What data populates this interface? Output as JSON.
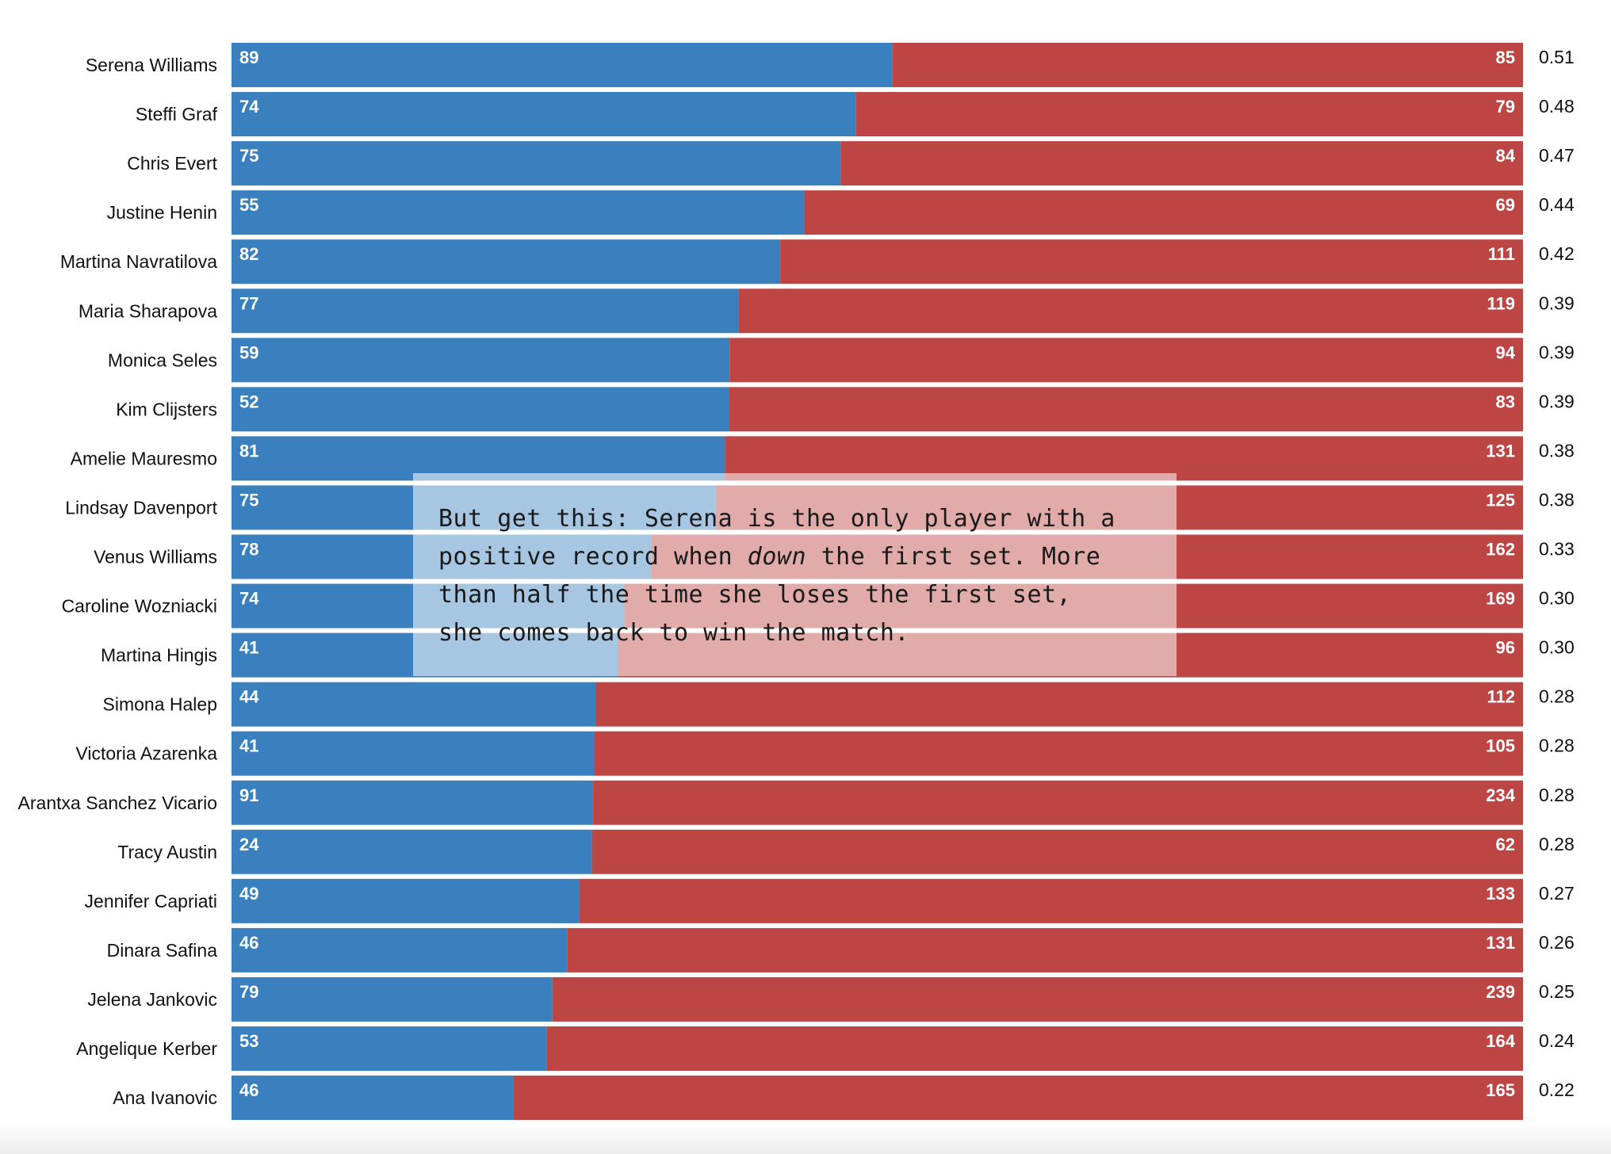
{
  "chart_data": {
    "type": "bar",
    "stacked": "normalized-horizontal",
    "categories": [
      "Serena Williams",
      "Steffi Graf",
      "Chris Evert",
      "Justine Henin",
      "Martina Navratilova",
      "Maria Sharapova",
      "Monica Seles",
      "Kim Clijsters",
      "Amelie Mauresmo",
      "Lindsay Davenport",
      "Venus Williams",
      "Caroline Wozniacki",
      "Martina Hingis",
      "Simona Halep",
      "Victoria Azarenka",
      "Arantxa Sanchez Vicario",
      "Tracy Austin",
      "Jennifer Capriati",
      "Dinara Safina",
      "Jelena Jankovic",
      "Angelique Kerber",
      "Ana Ivanovic"
    ],
    "series": [
      {
        "color": "#3a80be",
        "values": [
          89,
          74,
          75,
          55,
          82,
          77,
          59,
          52,
          81,
          75,
          78,
          74,
          41,
          44,
          41,
          91,
          24,
          49,
          46,
          79,
          53,
          46
        ]
      },
      {
        "color": "#bd4644",
        "values": [
          85,
          79,
          84,
          69,
          111,
          119,
          94,
          83,
          131,
          125,
          162,
          169,
          96,
          112,
          105,
          234,
          62,
          133,
          131,
          239,
          164,
          165
        ]
      }
    ],
    "ratios": [
      "0.51",
      "0.48",
      "0.47",
      "0.44",
      "0.42",
      "0.39",
      "0.39",
      "0.39",
      "0.38",
      "0.38",
      "0.33",
      "0.30",
      "0.30",
      "0.28",
      "0.28",
      "0.28",
      "0.28",
      "0.27",
      "0.26",
      "0.25",
      "0.24",
      "0.22"
    ],
    "title": "",
    "xlabel": "",
    "ylabel": "",
    "grid": false,
    "legend": "none"
  },
  "annotation": {
    "line1": "But get this: Serena is the only player with a",
    "line2_before": "positive record when ",
    "line2_emphasis": "down",
    "line2_after": " the first set. More",
    "line3": "than half the time she loses the first set,",
    "line4": "she comes back to win the match."
  }
}
